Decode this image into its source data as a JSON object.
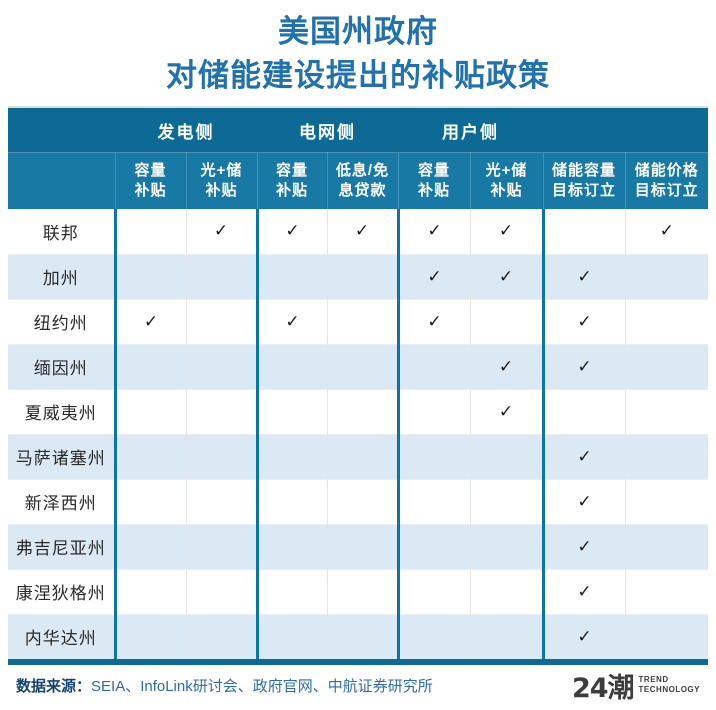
{
  "title": {
    "line1": "美国州政府",
    "line2": "对储能建设提出的补贴政策"
  },
  "colors": {
    "title_blue": "#2171ad",
    "header_dark_blue": "#0d6a94",
    "header_mid_blue": "#1779a4",
    "row_stripe_blue": "#dbe9f4",
    "divider_teal": "#0e74a3",
    "check_black": "#1a1a1a",
    "source_label_navy": "#16456e",
    "source_text_blue": "#2e6ca8",
    "logo_charcoal": "#3d3d3d"
  },
  "table": {
    "check_glyph": "✓",
    "groups": [
      {
        "key": "generation-side",
        "label": "发电侧",
        "span": 2
      },
      {
        "key": "grid-side",
        "label": "电网侧",
        "span": 2
      },
      {
        "key": "user-side",
        "label": "用户侧",
        "span": 2
      },
      {
        "key": "targets",
        "label": "",
        "span": 2
      }
    ],
    "columns": [
      {
        "key": "gen-capacity-subsidy",
        "line1": "容量",
        "line2": "补贴"
      },
      {
        "key": "gen-pv-storage-subsidy",
        "line1": "光+储",
        "line2": "补贴"
      },
      {
        "key": "grid-capacity-subsidy",
        "line1": "容量",
        "line2": "补贴"
      },
      {
        "key": "grid-low-interest-loan",
        "line1": "低息/免",
        "line2": "息贷款"
      },
      {
        "key": "user-capacity-subsidy",
        "line1": "容量",
        "line2": "补贴"
      },
      {
        "key": "user-pv-storage-subsidy",
        "line1": "光+储",
        "line2": "补贴"
      },
      {
        "key": "storage-capacity-target",
        "line1": "储能容量",
        "line2": "目标订立"
      },
      {
        "key": "storage-price-target",
        "line1": "储能价格",
        "line2": "目标订立"
      }
    ],
    "rows": [
      {
        "key": "federal",
        "name": "联邦",
        "checks": [
          0,
          1,
          1,
          1,
          1,
          1,
          0,
          1
        ]
      },
      {
        "key": "california",
        "name": "加州",
        "checks": [
          0,
          0,
          0,
          0,
          1,
          1,
          1,
          0
        ]
      },
      {
        "key": "new-york",
        "name": "纽约州",
        "checks": [
          1,
          0,
          1,
          0,
          1,
          0,
          1,
          0
        ]
      },
      {
        "key": "maine",
        "name": "缅因州",
        "checks": [
          0,
          0,
          0,
          0,
          0,
          1,
          1,
          0
        ]
      },
      {
        "key": "hawaii",
        "name": "夏威夷州",
        "checks": [
          0,
          0,
          0,
          0,
          0,
          1,
          0,
          0
        ]
      },
      {
        "key": "massachusetts",
        "name": "马萨诸塞州",
        "checks": [
          0,
          0,
          0,
          0,
          0,
          0,
          1,
          0
        ]
      },
      {
        "key": "new-jersey",
        "name": "新泽西州",
        "checks": [
          0,
          0,
          0,
          0,
          0,
          0,
          1,
          0
        ]
      },
      {
        "key": "virginia",
        "name": "弗吉尼亚州",
        "checks": [
          0,
          0,
          0,
          0,
          0,
          0,
          1,
          0
        ]
      },
      {
        "key": "connecticut",
        "name": "康涅狄格州",
        "checks": [
          0,
          0,
          0,
          0,
          0,
          0,
          1,
          0
        ]
      },
      {
        "key": "nevada",
        "name": "内华达州",
        "checks": [
          0,
          0,
          0,
          0,
          0,
          0,
          1,
          0
        ]
      }
    ]
  },
  "footer": {
    "source_label": "数据来源：",
    "source_text": "SEIA、InfoLink研讨会、政府官网、中航证券研究所"
  },
  "logo": {
    "brand": "24潮",
    "sub_line1": "TREND",
    "sub_line2": "TECHNOLOGY"
  }
}
